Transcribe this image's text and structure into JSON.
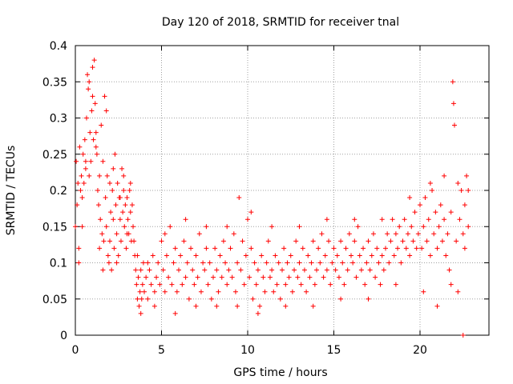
{
  "chart_data": {
    "type": "scatter",
    "title": "Day 120 of 2018, SRMTID for receiver tnal",
    "xlabel": "GPS time / hours",
    "ylabel": "SRMTID / TECUs",
    "xlim": [
      0,
      24
    ],
    "ylim": [
      0,
      0.4
    ],
    "xticks": [
      0,
      5,
      10,
      15,
      20
    ],
    "xtick_labels": [
      "0",
      "5",
      "10",
      "15",
      "20"
    ],
    "yticks": [
      0,
      0.05,
      0.1,
      0.15,
      0.2,
      0.25,
      0.3,
      0.35,
      0.4
    ],
    "ytick_labels": [
      "0",
      "0.05",
      "0.1",
      "0.15",
      "0.2",
      "0.25",
      "0.3",
      "0.35",
      "0.4"
    ],
    "grid": true,
    "marker": "+",
    "color": "#ff0000",
    "series": [
      {
        "name": "SRMTID",
        "points": [
          [
            0.0,
            0.15
          ],
          [
            0.05,
            0.24
          ],
          [
            0.1,
            0.18
          ],
          [
            0.15,
            0.21
          ],
          [
            0.2,
            0.12
          ],
          [
            0.25,
            0.26
          ],
          [
            0.3,
            0.2
          ],
          [
            0.35,
            0.22
          ],
          [
            0.4,
            0.19
          ],
          [
            0.45,
            0.25
          ],
          [
            0.5,
            0.21
          ],
          [
            0.55,
            0.27
          ],
          [
            0.6,
            0.23
          ],
          [
            0.65,
            0.3
          ],
          [
            0.7,
            0.36
          ],
          [
            0.75,
            0.34
          ],
          [
            0.8,
            0.22
          ],
          [
            0.85,
            0.28
          ],
          [
            0.9,
            0.24
          ],
          [
            0.95,
            0.31
          ],
          [
            1.0,
            0.33
          ],
          [
            1.05,
            0.27
          ],
          [
            1.1,
            0.38
          ],
          [
            1.15,
            0.32
          ],
          [
            1.2,
            0.28
          ],
          [
            1.25,
            0.25
          ],
          [
            1.3,
            0.2
          ],
          [
            1.35,
            0.18
          ],
          [
            1.4,
            0.22
          ],
          [
            1.45,
            0.16
          ],
          [
            1.5,
            0.29
          ],
          [
            1.55,
            0.14
          ],
          [
            1.6,
            0.24
          ],
          [
            1.65,
            0.13
          ],
          [
            1.7,
            0.33
          ],
          [
            1.75,
            0.19
          ],
          [
            1.8,
            0.15
          ],
          [
            1.85,
            0.22
          ],
          [
            1.9,
            0.11
          ],
          [
            1.95,
            0.1
          ],
          [
            2.0,
            0.21
          ],
          [
            2.05,
            0.17
          ],
          [
            2.1,
            0.09
          ],
          [
            2.15,
            0.2
          ],
          [
            2.2,
            0.16
          ],
          [
            2.25,
            0.12
          ],
          [
            2.3,
            0.25
          ],
          [
            2.35,
            0.18
          ],
          [
            2.4,
            0.14
          ],
          [
            2.45,
            0.21
          ],
          [
            2.5,
            0.11
          ],
          [
            2.55,
            0.19
          ],
          [
            2.6,
            0.16
          ],
          [
            2.65,
            0.13
          ],
          [
            2.7,
            0.23
          ],
          [
            2.75,
            0.17
          ],
          [
            2.8,
            0.2
          ],
          [
            2.85,
            0.15
          ],
          [
            2.9,
            0.18
          ],
          [
            2.95,
            0.12
          ],
          [
            3.0,
            0.19
          ],
          [
            3.05,
            0.16
          ],
          [
            3.1,
            0.14
          ],
          [
            3.15,
            0.2
          ],
          [
            3.2,
            0.17
          ],
          [
            3.25,
            0.13
          ],
          [
            3.3,
            0.18
          ],
          [
            3.35,
            0.15
          ],
          [
            3.4,
            0.13
          ],
          [
            3.45,
            0.11
          ],
          [
            3.5,
            0.09
          ],
          [
            3.55,
            0.07
          ],
          [
            3.6,
            0.05
          ],
          [
            3.65,
            0.08
          ],
          [
            3.7,
            0.04
          ],
          [
            3.75,
            0.06
          ],
          [
            3.8,
            0.09
          ],
          [
            3.85,
            0.05
          ],
          [
            3.9,
            0.07
          ],
          [
            3.95,
            0.1
          ],
          [
            4.0,
            0.06
          ],
          [
            4.1,
            0.08
          ],
          [
            4.2,
            0.05
          ],
          [
            4.3,
            0.09
          ],
          [
            4.4,
            0.07
          ],
          [
            4.5,
            0.11
          ],
          [
            4.6,
            0.06
          ],
          [
            4.7,
            0.08
          ],
          [
            4.8,
            0.1
          ],
          [
            4.9,
            0.07
          ],
          [
            5.0,
            0.13
          ],
          [
            5.1,
            0.09
          ],
          [
            5.2,
            0.06
          ],
          [
            5.3,
            0.11
          ],
          [
            5.4,
            0.08
          ],
          [
            5.5,
            0.15
          ],
          [
            5.6,
            0.07
          ],
          [
            5.7,
            0.1
          ],
          [
            5.8,
            0.12
          ],
          [
            5.9,
            0.06
          ],
          [
            6.0,
            0.09
          ],
          [
            6.1,
            0.11
          ],
          [
            6.2,
            0.07
          ],
          [
            6.3,
            0.13
          ],
          [
            6.4,
            0.08
          ],
          [
            6.5,
            0.1
          ],
          [
            6.6,
            0.05
          ],
          [
            6.7,
            0.12
          ],
          [
            6.8,
            0.09
          ],
          [
            6.9,
            0.07
          ],
          [
            7.0,
            0.11
          ],
          [
            7.1,
            0.08
          ],
          [
            7.2,
            0.14
          ],
          [
            7.3,
            0.06
          ],
          [
            7.4,
            0.1
          ],
          [
            7.5,
            0.09
          ],
          [
            7.6,
            0.12
          ],
          [
            7.7,
            0.07
          ],
          [
            7.8,
            0.1
          ],
          [
            7.9,
            0.05
          ],
          [
            8.0,
            0.08
          ],
          [
            8.1,
            0.12
          ],
          [
            8.2,
            0.09
          ],
          [
            8.3,
            0.06
          ],
          [
            8.4,
            0.11
          ],
          [
            8.5,
            0.08
          ],
          [
            8.6,
            0.13
          ],
          [
            8.7,
            0.1
          ],
          [
            8.8,
            0.07
          ],
          [
            8.9,
            0.09
          ],
          [
            9.0,
            0.12
          ],
          [
            9.1,
            0.08
          ],
          [
            9.2,
            0.14
          ],
          [
            9.3,
            0.06
          ],
          [
            9.4,
            0.1
          ],
          [
            9.5,
            0.19
          ],
          [
            9.6,
            0.09
          ],
          [
            9.7,
            0.13
          ],
          [
            9.8,
            0.07
          ],
          [
            9.9,
            0.11
          ],
          [
            10.0,
            0.16
          ],
          [
            10.1,
            0.08
          ],
          [
            10.2,
            0.12
          ],
          [
            10.3,
            0.05
          ],
          [
            10.4,
            0.1
          ],
          [
            10.5,
            0.07
          ],
          [
            10.6,
            0.09
          ],
          [
            10.7,
            0.04
          ],
          [
            10.8,
            0.11
          ],
          [
            10.9,
            0.08
          ],
          [
            11.0,
            0.06
          ],
          [
            11.1,
            0.1
          ],
          [
            11.2,
            0.13
          ],
          [
            11.3,
            0.08
          ],
          [
            11.4,
            0.09
          ],
          [
            11.5,
            0.06
          ],
          [
            11.6,
            0.11
          ],
          [
            11.7,
            0.07
          ],
          [
            11.8,
            0.1
          ],
          [
            11.9,
            0.05
          ],
          [
            12.0,
            0.09
          ],
          [
            12.1,
            0.12
          ],
          [
            12.2,
            0.07
          ],
          [
            12.3,
            0.1
          ],
          [
            12.4,
            0.08
          ],
          [
            12.5,
            0.11
          ],
          [
            12.6,
            0.06
          ],
          [
            12.7,
            0.09
          ],
          [
            12.8,
            0.13
          ],
          [
            12.9,
            0.08
          ],
          [
            13.0,
            0.1
          ],
          [
            13.1,
            0.07
          ],
          [
            13.2,
            0.12
          ],
          [
            13.3,
            0.09
          ],
          [
            13.4,
            0.06
          ],
          [
            13.5,
            0.11
          ],
          [
            13.6,
            0.08
          ],
          [
            13.7,
            0.1
          ],
          [
            13.8,
            0.13
          ],
          [
            13.9,
            0.07
          ],
          [
            14.0,
            0.09
          ],
          [
            14.1,
            0.12
          ],
          [
            14.2,
            0.1
          ],
          [
            14.3,
            0.14
          ],
          [
            14.4,
            0.08
          ],
          [
            14.5,
            0.11
          ],
          [
            14.6,
            0.09
          ],
          [
            14.7,
            0.13
          ],
          [
            14.8,
            0.07
          ],
          [
            14.9,
            0.1
          ],
          [
            15.0,
            0.12
          ],
          [
            15.1,
            0.09
          ],
          [
            15.2,
            0.11
          ],
          [
            15.3,
            0.08
          ],
          [
            15.4,
            0.13
          ],
          [
            15.5,
            0.1
          ],
          [
            15.6,
            0.07
          ],
          [
            15.7,
            0.12
          ],
          [
            15.8,
            0.09
          ],
          [
            15.9,
            0.14
          ],
          [
            16.0,
            0.11
          ],
          [
            16.1,
            0.1
          ],
          [
            16.2,
            0.13
          ],
          [
            16.3,
            0.08
          ],
          [
            16.4,
            0.15
          ],
          [
            16.5,
            0.11
          ],
          [
            16.6,
            0.09
          ],
          [
            16.7,
            0.12
          ],
          [
            16.8,
            0.07
          ],
          [
            16.9,
            0.1
          ],
          [
            17.0,
            0.13
          ],
          [
            17.1,
            0.09
          ],
          [
            17.2,
            0.11
          ],
          [
            17.3,
            0.14
          ],
          [
            17.4,
            0.08
          ],
          [
            17.5,
            0.12
          ],
          [
            17.6,
            0.1
          ],
          [
            17.7,
            0.07
          ],
          [
            17.8,
            0.11
          ],
          [
            17.9,
            0.09
          ],
          [
            18.0,
            0.12
          ],
          [
            18.1,
            0.14
          ],
          [
            18.2,
            0.1
          ],
          [
            18.3,
            0.13
          ],
          [
            18.4,
            0.16
          ],
          [
            18.5,
            0.11
          ],
          [
            18.6,
            0.14
          ],
          [
            18.7,
            0.12
          ],
          [
            18.8,
            0.15
          ],
          [
            18.9,
            0.1
          ],
          [
            19.0,
            0.13
          ],
          [
            19.1,
            0.16
          ],
          [
            19.2,
            0.12
          ],
          [
            19.3,
            0.14
          ],
          [
            19.4,
            0.11
          ],
          [
            19.5,
            0.15
          ],
          [
            19.6,
            0.13
          ],
          [
            19.7,
            0.17
          ],
          [
            19.8,
            0.12
          ],
          [
            19.9,
            0.14
          ],
          [
            20.0,
            0.18
          ],
          [
            20.1,
            0.12
          ],
          [
            20.2,
            0.15
          ],
          [
            20.3,
            0.19
          ],
          [
            20.4,
            0.13
          ],
          [
            20.5,
            0.16
          ],
          [
            20.6,
            0.11
          ],
          [
            20.7,
            0.2
          ],
          [
            20.8,
            0.14
          ],
          [
            20.9,
            0.17
          ],
          [
            21.0,
            0.12
          ],
          [
            21.1,
            0.15
          ],
          [
            21.2,
            0.18
          ],
          [
            21.3,
            0.13
          ],
          [
            21.4,
            0.16
          ],
          [
            21.5,
            0.11
          ],
          [
            21.6,
            0.14
          ],
          [
            21.7,
            0.09
          ],
          [
            21.8,
            0.17
          ],
          [
            21.9,
            0.35
          ],
          [
            21.95,
            0.32
          ],
          [
            22.0,
            0.29
          ],
          [
            22.1,
            0.13
          ],
          [
            22.2,
            0.21
          ],
          [
            22.3,
            0.16
          ],
          [
            22.4,
            0.2
          ],
          [
            22.5,
            0.14
          ],
          [
            22.6,
            0.18
          ],
          [
            22.7,
            0.22
          ],
          [
            22.8,
            0.15
          ],
          [
            0.2,
            0.1
          ],
          [
            0.4,
            0.15
          ],
          [
            0.6,
            0.24
          ],
          [
            0.8,
            0.35
          ],
          [
            1.0,
            0.37
          ],
          [
            1.2,
            0.26
          ],
          [
            1.4,
            0.12
          ],
          [
            1.6,
            0.09
          ],
          [
            1.8,
            0.31
          ],
          [
            2.0,
            0.13
          ],
          [
            2.2,
            0.23
          ],
          [
            2.4,
            0.1
          ],
          [
            2.6,
            0.19
          ],
          [
            2.8,
            0.22
          ],
          [
            3.0,
            0.14
          ],
          [
            3.2,
            0.21
          ],
          [
            3.6,
            0.11
          ],
          [
            3.8,
            0.03
          ],
          [
            4.2,
            0.1
          ],
          [
            4.6,
            0.04
          ],
          [
            5.2,
            0.14
          ],
          [
            5.8,
            0.03
          ],
          [
            6.4,
            0.16
          ],
          [
            7.0,
            0.04
          ],
          [
            7.6,
            0.15
          ],
          [
            8.2,
            0.04
          ],
          [
            8.8,
            0.15
          ],
          [
            9.4,
            0.04
          ],
          [
            10.2,
            0.17
          ],
          [
            10.6,
            0.03
          ],
          [
            11.4,
            0.15
          ],
          [
            12.2,
            0.04
          ],
          [
            13.0,
            0.15
          ],
          [
            13.8,
            0.04
          ],
          [
            14.6,
            0.16
          ],
          [
            15.4,
            0.05
          ],
          [
            16.2,
            0.16
          ],
          [
            17.0,
            0.05
          ],
          [
            17.8,
            0.16
          ],
          [
            18.6,
            0.07
          ],
          [
            19.4,
            0.19
          ],
          [
            20.2,
            0.06
          ],
          [
            20.6,
            0.21
          ],
          [
            21.0,
            0.04
          ],
          [
            21.4,
            0.22
          ],
          [
            21.8,
            0.07
          ],
          [
            22.2,
            0.06
          ],
          [
            22.6,
            0.12
          ],
          [
            22.8,
            0.2
          ],
          [
            22.5,
            0.0
          ]
        ]
      }
    ]
  }
}
